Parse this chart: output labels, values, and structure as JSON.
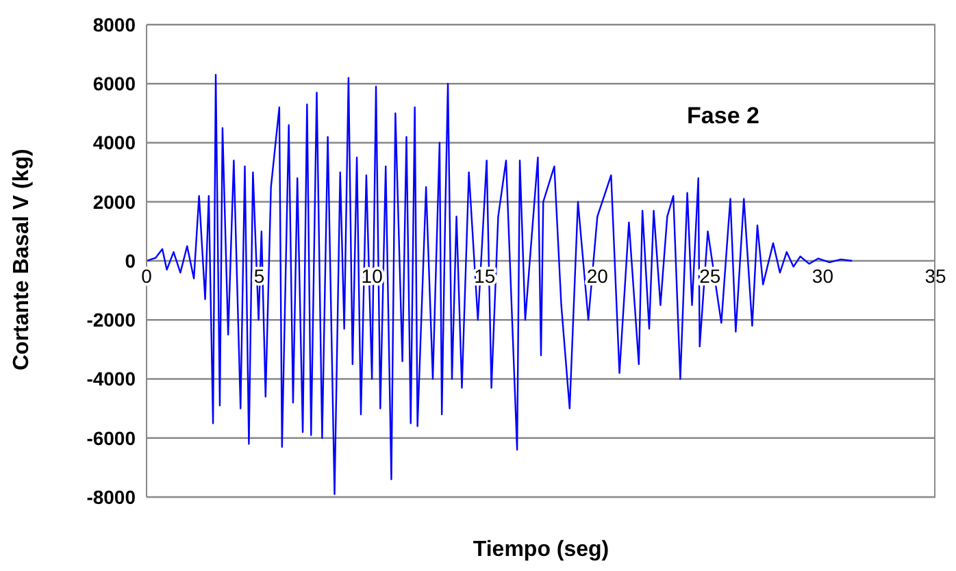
{
  "chart_data": {
    "type": "line",
    "xlabel": "Tiempo (seg)",
    "ylabel": "Cortante Basal V (kg)",
    "annotations": [
      "Fase 2"
    ],
    "xlim": [
      0,
      35
    ],
    "xticks": [
      0,
      5,
      10,
      15,
      20,
      25,
      30,
      35
    ],
    "ylim": [
      -8000,
      8000
    ],
    "yticks": [
      -8000,
      -6000,
      -4000,
      -2000,
      0,
      2000,
      4000,
      6000,
      8000
    ],
    "grid": "y",
    "marker": "none",
    "line_style": "solid",
    "series": [
      {
        "color": "#0000ff",
        "x": [
          0,
          0.4,
          0.7,
          0.9,
          1.2,
          1.5,
          1.8,
          2.1,
          2.33,
          2.6,
          2.76,
          2.95,
          3.07,
          3.25,
          3.37,
          3.62,
          3.87,
          4.17,
          4.36,
          4.54,
          4.72,
          4.97,
          5.1,
          5.28,
          5.52,
          5.89,
          6.01,
          6.31,
          6.5,
          6.69,
          6.93,
          7.12,
          7.3,
          7.55,
          7.79,
          8.04,
          8.34,
          8.59,
          8.77,
          8.96,
          9.14,
          9.33,
          9.51,
          9.75,
          10.0,
          10.18,
          10.37,
          10.61,
          10.86,
          11.04,
          11.35,
          11.53,
          11.72,
          11.9,
          12.02,
          12.4,
          12.7,
          13.0,
          13.1,
          13.25,
          13.37,
          13.55,
          13.75,
          13.99,
          14.3,
          14.7,
          15.09,
          15.3,
          15.6,
          15.95,
          16.44,
          16.56,
          16.8,
          17.36,
          17.5,
          17.6,
          18.09,
          18.4,
          18.77,
          19.14,
          19.6,
          20.0,
          20.61,
          20.98,
          21.4,
          21.84,
          22.0,
          22.3,
          22.5,
          22.8,
          23.1,
          23.37,
          23.68,
          23.99,
          24.2,
          24.48,
          24.54,
          24.9,
          25.5,
          25.9,
          26.14,
          26.5,
          26.87,
          27.1,
          27.35,
          27.8,
          28.1,
          28.4,
          28.7,
          29.0,
          29.4,
          29.8,
          30.3,
          30.8,
          31.3
        ],
        "values": [
          0,
          100,
          400,
          -300,
          300,
          -400,
          500,
          -600,
          2200,
          -1300,
          2200,
          -5500,
          6300,
          -4900,
          4500,
          -2500,
          3400,
          -5000,
          3200,
          -6200,
          3000,
          -2000,
          1000,
          -4600,
          2500,
          5200,
          -6300,
          4600,
          -4800,
          2800,
          -5800,
          5300,
          -5900,
          5700,
          -6000,
          4200,
          -7900,
          3000,
          -2300,
          6200,
          -3500,
          3500,
          -5200,
          2900,
          -4000,
          5900,
          -5000,
          3200,
          -7400,
          5000,
          -3400,
          4200,
          -5500,
          5200,
          -5600,
          2500,
          -4000,
          4000,
          -5200,
          1500,
          6000,
          -4000,
          1500,
          -4300,
          3000,
          -2000,
          3400,
          -4300,
          1500,
          3400,
          -6400,
          3400,
          -2000,
          3500,
          -3200,
          2000,
          3200,
          -1500,
          -5000,
          2000,
          -2000,
          1500,
          2900,
          -3800,
          1300,
          -3500,
          1700,
          -2300,
          1700,
          -1500,
          1500,
          2200,
          -4000,
          2300,
          -1500,
          2800,
          -2900,
          1000,
          -2100,
          2100,
          -2400,
          2100,
          -2200,
          1200,
          -800,
          600,
          -400,
          300,
          -200,
          150,
          -100,
          80,
          -50,
          50,
          0
        ]
      }
    ]
  }
}
